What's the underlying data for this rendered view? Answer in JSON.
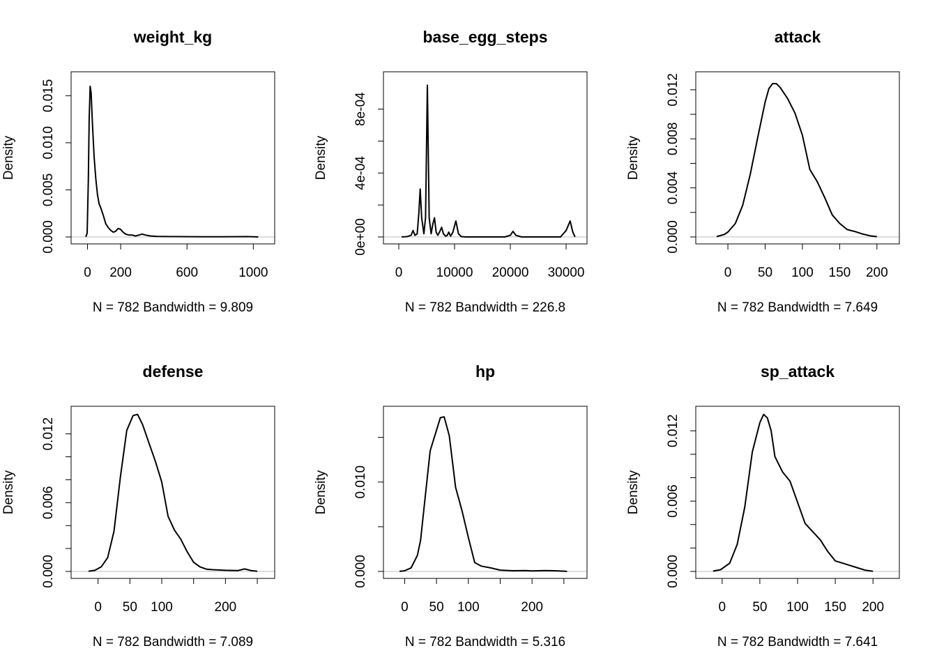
{
  "chart_data": [
    {
      "type": "line",
      "title": "weight_kg",
      "ylabel": "Density",
      "xlabel": "N = 782   Bandwidth = 9.809",
      "xlim": [
        -40,
        1070
      ],
      "ylim": [
        0,
        0.0168
      ],
      "xticks": [
        0,
        200,
        600,
        1000
      ],
      "yticks": [
        0.0,
        0.005,
        0.01,
        0.015
      ],
      "ytick_labels": [
        "0.000",
        "0.005",
        "0.010",
        "0.015"
      ],
      "series": [
        {
          "x": [
            -10,
            -2,
            5,
            10,
            16,
            22,
            30,
            40,
            50,
            60,
            70,
            80,
            95,
            110,
            125,
            140,
            155,
            170,
            185,
            200,
            215,
            230,
            250,
            270,
            290,
            310,
            330,
            350,
            380,
            420,
            500,
            600,
            700,
            800,
            900,
            960,
            1000,
            1030
          ],
          "y": [
            0.0,
            0.0004,
            0.006,
            0.0125,
            0.016,
            0.0153,
            0.012,
            0.0085,
            0.0062,
            0.0045,
            0.0035,
            0.0031,
            0.0023,
            0.0014,
            0.001,
            0.0007,
            0.0005,
            0.0006,
            0.0009,
            0.0008,
            0.0005,
            0.0003,
            0.0002,
            0.0002,
            0.0001,
            0.0002,
            0.0003,
            0.0002,
            0.0001,
            5e-05,
            4e-05,
            3e-05,
            2e-05,
            2e-05,
            3e-05,
            4e-05,
            2e-05,
            0.0
          ]
        }
      ]
    },
    {
      "type": "line",
      "title": "base_egg_steps",
      "ylabel": "Density",
      "xlabel": "N = 782   Bandwidth = 226.8",
      "xlim": [
        -1000,
        32000
      ],
      "ylim": [
        0,
        0.00099
      ],
      "xticks": [
        0,
        10000,
        20000,
        30000
      ],
      "yticks": [
        0,
        0.0002,
        0.0004,
        0.0006,
        0.0008
      ],
      "ytick_labels": [
        "0e+00",
        "",
        "4e-04",
        "",
        "8e-04"
      ],
      "series": [
        {
          "x": [
            500,
            1500,
            2200,
            2560,
            2900,
            3300,
            3600,
            3840,
            4100,
            4500,
            4800,
            5120,
            5450,
            5800,
            6100,
            6400,
            6700,
            7000,
            7300,
            7680,
            8000,
            8400,
            8700,
            8960,
            9300,
            9700,
            10240,
            10700,
            11200,
            12000,
            15000,
            19000,
            20000,
            20480,
            21000,
            22000,
            25000,
            29000,
            30000,
            30720,
            31200,
            31600
          ],
          "y": [
            0,
            2e-06,
            1e-05,
            4e-05,
            1e-05,
            2e-05,
            0.00015,
            0.0003,
            0.00012,
            2e-05,
            0.00012,
            0.00095,
            0.00012,
            2e-05,
            8e-05,
            0.00012,
            3e-05,
            1e-05,
            3e-05,
            6e-05,
            2e-05,
            5e-06,
            1e-05,
            3e-05,
            5e-06,
            3e-05,
            0.0001,
            2e-05,
            2e-06,
            0,
            0,
            0,
            1e-05,
            3.5e-05,
            1e-05,
            0,
            0,
            0,
            4e-05,
            0.0001,
            3e-05,
            0
          ]
        }
      ]
    },
    {
      "type": "line",
      "title": "attack",
      "ylabel": "Density",
      "xlabel": "N = 782   Bandwidth = 7.649",
      "xlim": [
        -30,
        217
      ],
      "ylim": [
        0,
        0.0129
      ],
      "xticks": [
        0,
        50,
        100,
        150,
        200
      ],
      "yticks": [
        0.0,
        0.002,
        0.004,
        0.006,
        0.008,
        0.01,
        0.012
      ],
      "ytick_labels": [
        "0.000",
        "",
        "0.004",
        "",
        "0.008",
        "",
        "0.012"
      ],
      "series": [
        {
          "x": [
            -15,
            -5,
            0,
            10,
            20,
            30,
            40,
            50,
            55,
            60,
            65,
            70,
            80,
            90,
            100,
            110,
            120,
            130,
            140,
            150,
            160,
            170,
            180,
            190,
            200
          ],
          "y": [
            3e-05,
            0.0002,
            0.0004,
            0.0011,
            0.0026,
            0.0051,
            0.0081,
            0.011,
            0.0121,
            0.0125,
            0.0125,
            0.0122,
            0.0113,
            0.0101,
            0.0083,
            0.0055,
            0.0045,
            0.0032,
            0.0018,
            0.0011,
            0.0006,
            0.00045,
            0.00025,
            0.0001,
            2e-05
          ]
        }
      ]
    },
    {
      "type": "line",
      "title": "defense",
      "ylabel": "Density",
      "xlabel": "N = 782   Bandwidth = 7.089",
      "xlim": [
        -27,
        262
      ],
      "ylim": [
        0,
        0.0138
      ],
      "xticks": [
        0,
        50,
        100,
        200
      ],
      "extra_xticks": [
        150,
        250
      ],
      "yticks": [
        0.0,
        0.002,
        0.004,
        0.006,
        0.008,
        0.01,
        0.012
      ],
      "ytick_labels": [
        "0.000",
        "",
        "",
        "0.006",
        "",
        "",
        "0.012"
      ],
      "series": [
        {
          "x": [
            -15,
            -5,
            5,
            15,
            25,
            35,
            45,
            55,
            62,
            70,
            80,
            90,
            100,
            110,
            120,
            130,
            140,
            150,
            160,
            170,
            180,
            200,
            220,
            230,
            240,
            250
          ],
          "y": [
            2e-05,
            0.0001,
            0.0004,
            0.0012,
            0.0035,
            0.0082,
            0.0123,
            0.0136,
            0.0137,
            0.0128,
            0.0112,
            0.0096,
            0.0078,
            0.0048,
            0.0036,
            0.0028,
            0.0017,
            0.0008,
            0.0004,
            0.0002,
            0.00015,
            0.0001,
            8e-05,
            0.00022,
            8e-05,
            1e-05
          ]
        }
      ]
    },
    {
      "type": "line",
      "title": "hp",
      "ylabel": "Density",
      "xlabel": "N = 782   Bandwidth = 5.316",
      "xlim": [
        -18,
        271
      ],
      "ylim": [
        0,
        0.0177
      ],
      "xticks": [
        0,
        50,
        100,
        200
      ],
      "extra_xticks": [
        150,
        250
      ],
      "yticks": [
        0.0,
        0.005,
        0.01,
        0.015
      ],
      "ytick_labels": [
        "0.000",
        "",
        "0.010",
        ""
      ],
      "series": [
        {
          "x": [
            -8,
            0,
            10,
            20,
            25,
            30,
            40,
            50,
            56,
            62,
            70,
            80,
            90,
            100,
            110,
            120,
            135,
            150,
            170,
            190,
            200,
            220,
            235,
            250,
            255
          ],
          "y": [
            1e-05,
            8e-05,
            0.0004,
            0.0018,
            0.0035,
            0.0068,
            0.0135,
            0.0158,
            0.0172,
            0.0173,
            0.0152,
            0.0094,
            0.0068,
            0.0038,
            0.001,
            0.0006,
            0.0004,
            0.00015,
            8e-05,
            0.0001,
            6e-05,
            0.0001,
            8e-05,
            3e-05,
            0.0
          ]
        }
      ]
    },
    {
      "type": "line",
      "title": "sp_attack",
      "ylabel": "Density",
      "xlabel": "N = 782   Bandwidth = 7.641",
      "xlim": [
        -22,
        222
      ],
      "ylim": [
        0,
        0.0135
      ],
      "xticks": [
        0,
        50,
        100,
        150,
        200
      ],
      "yticks": [
        0.0,
        0.002,
        0.004,
        0.006,
        0.008,
        0.01,
        0.012
      ],
      "ytick_labels": [
        "0.000",
        "",
        "",
        "0.006",
        "",
        "",
        "0.012"
      ],
      "series": [
        {
          "x": [
            -12,
            -2,
            10,
            20,
            30,
            40,
            50,
            55,
            60,
            65,
            70,
            80,
            90,
            100,
            110,
            120,
            130,
            140,
            150,
            160,
            170,
            180,
            190,
            200
          ],
          "y": [
            3e-05,
            0.00015,
            0.0007,
            0.0023,
            0.0055,
            0.0102,
            0.0127,
            0.0134,
            0.0131,
            0.012,
            0.0098,
            0.0085,
            0.0077,
            0.0059,
            0.0041,
            0.0034,
            0.0027,
            0.0017,
            0.0009,
            0.0007,
            0.0005,
            0.0003,
            0.0001,
            2e-05
          ]
        }
      ]
    }
  ]
}
